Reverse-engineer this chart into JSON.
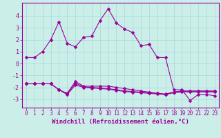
{
  "xlabel": "Windchill (Refroidissement éolien,°C)",
  "background_color": "#cceee8",
  "grid_color": "#aadddd",
  "line_color": "#990099",
  "border_color": "#9900aa",
  "x_hours": [
    0,
    1,
    2,
    3,
    4,
    5,
    6,
    7,
    8,
    9,
    10,
    11,
    12,
    13,
    14,
    15,
    16,
    17,
    18,
    19,
    20,
    21,
    22,
    23
  ],
  "series1": [
    0.5,
    0.5,
    1.0,
    2.0,
    3.5,
    1.7,
    1.4,
    2.2,
    2.3,
    3.6,
    4.6,
    3.4,
    2.9,
    2.6,
    1.5,
    1.6,
    0.5,
    0.5,
    -2.2,
    -2.2,
    -3.1,
    -2.6,
    -2.6,
    -2.7
  ],
  "series2": [
    -1.7,
    -1.7,
    -1.7,
    -1.7,
    -2.2,
    -2.5,
    -1.5,
    -1.9,
    -1.9,
    -1.9,
    -1.9,
    -2.0,
    -2.1,
    -2.2,
    -2.3,
    -2.4,
    -2.5,
    -2.6,
    -2.4,
    -2.3,
    -2.3,
    -2.3,
    -2.3,
    -2.3
  ],
  "series3": [
    -1.7,
    -1.7,
    -1.7,
    -1.7,
    -2.2,
    -2.55,
    -1.65,
    -1.95,
    -2.0,
    -2.05,
    -2.1,
    -2.2,
    -2.3,
    -2.35,
    -2.4,
    -2.45,
    -2.5,
    -2.55,
    -2.4,
    -2.32,
    -2.32,
    -2.32,
    -2.32,
    -2.32
  ],
  "series4": [
    -1.7,
    -1.7,
    -1.7,
    -1.7,
    -2.2,
    -2.6,
    -1.8,
    -2.0,
    -2.05,
    -2.1,
    -2.15,
    -2.25,
    -2.35,
    -2.4,
    -2.45,
    -2.5,
    -2.55,
    -2.6,
    -2.45,
    -2.38,
    -2.38,
    -2.38,
    -2.38,
    -2.38
  ],
  "ylim": [
    -3.7,
    5.1
  ],
  "yticks": [
    -3,
    -2,
    -1,
    0,
    1,
    2,
    3,
    4
  ],
  "marker": "D",
  "marker_size": 2.5,
  "line_width": 0.8,
  "xlabel_fontsize": 6.5,
  "tick_fontsize": 5.5
}
